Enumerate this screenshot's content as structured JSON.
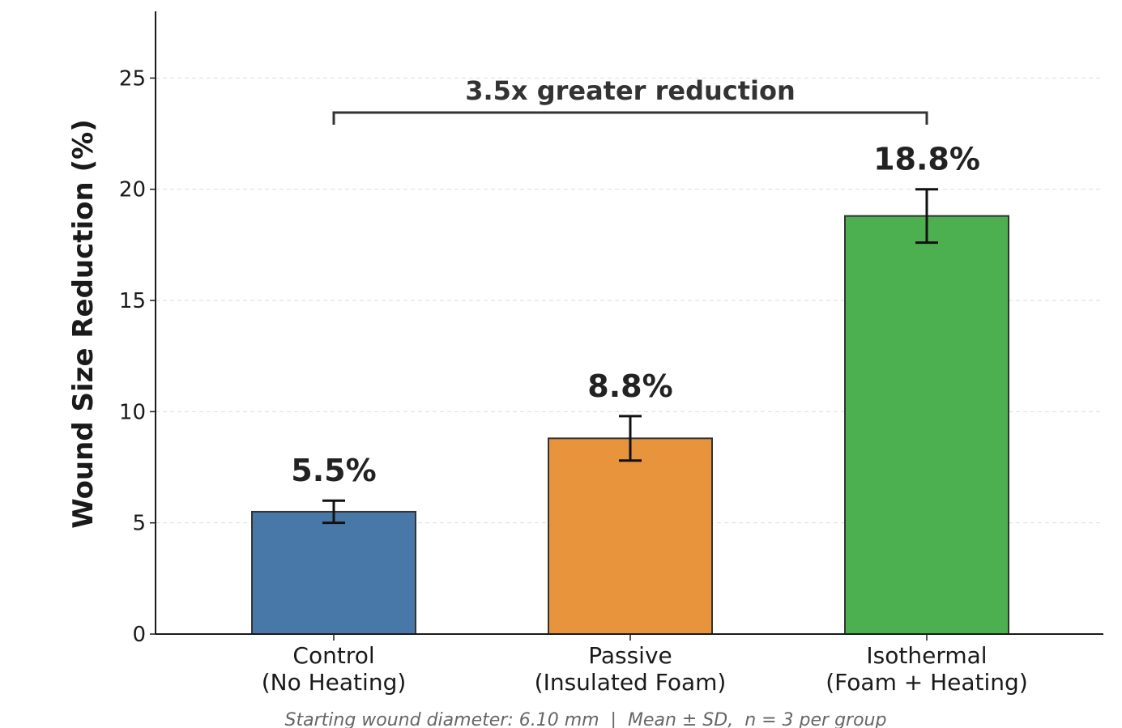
{
  "chart_data": {
    "type": "bar",
    "categories": [
      [
        "Control",
        "(No Heating)"
      ],
      [
        "Passive",
        "(Insulated Foam)"
      ],
      [
        "Isothermal",
        "(Foam + Heating)"
      ]
    ],
    "values": [
      5.5,
      8.8,
      18.8
    ],
    "errors": [
      0.5,
      1.0,
      1.2
    ],
    "value_labels": [
      "5.5%",
      "8.8%",
      "18.8%"
    ],
    "colors": [
      "#4878a8",
      "#e8943c",
      "#4db050"
    ],
    "ylabel": "Wound Size Reduction (%)",
    "ylim": [
      0,
      28
    ],
    "yticks": [
      0,
      5,
      10,
      15,
      20,
      25
    ],
    "grid": "horizontal dashed",
    "bracket": {
      "from": 0,
      "to": 2,
      "label": "3.5x greater reduction"
    },
    "footnote": "Starting wound diameter: 6.10 mm  |  Mean ± SD,  n = 3 per group"
  }
}
